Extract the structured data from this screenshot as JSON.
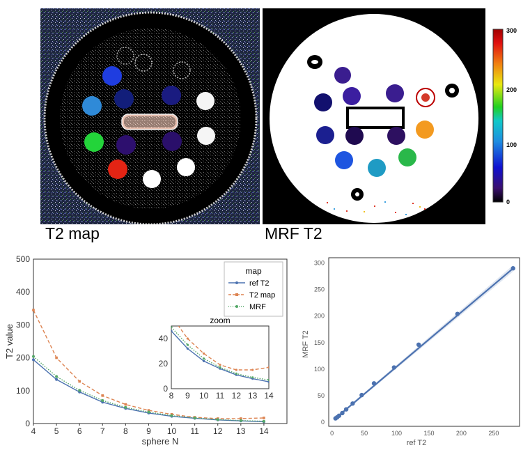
{
  "figure": {
    "left_map_label": "T2 map",
    "right_map_label": "MRF T2",
    "colorbar": {
      "min": 0,
      "max": 300,
      "ticks": [
        "300",
        "200",
        "100",
        "0"
      ],
      "tick_values": [
        300,
        200,
        100,
        0
      ]
    }
  },
  "chart_data": [
    {
      "type": "line",
      "title": "",
      "xlabel": "sphere N",
      "ylabel": "T2 value",
      "xlim": [
        4,
        15
      ],
      "ylim": [
        0,
        500
      ],
      "x": [
        4,
        5,
        6,
        7,
        8,
        9,
        10,
        11,
        12,
        13,
        14
      ],
      "xticks": [
        "4",
        "5",
        "6",
        "7",
        "8",
        "9",
        "10",
        "11",
        "12",
        "13",
        "14"
      ],
      "yticks": [
        "0",
        "100",
        "200",
        "300",
        "400",
        "500"
      ],
      "ytick_values": [
        0,
        100,
        200,
        300,
        400,
        500
      ],
      "legend": {
        "title": "map",
        "placement": "top-right",
        "entries": [
          "ref T2",
          "T2 map",
          "MRF"
        ]
      },
      "series": [
        {
          "name": "ref T2",
          "color": "#4c72b0",
          "values": [
            194,
            134,
            96,
            65,
            46,
            32,
            22,
            16,
            11,
            8,
            5.5
          ]
        },
        {
          "name": "T2 map",
          "color": "#dd8452",
          "values": [
            345,
            200,
            128,
            85,
            58,
            40,
            28,
            19,
            15,
            15,
            17
          ]
        },
        {
          "name": "MRF",
          "color": "#55a868",
          "values": [
            204,
            143,
            101,
            70,
            49,
            35,
            24,
            17,
            12,
            9,
            7
          ]
        }
      ],
      "inset": {
        "title": "zoom",
        "xlim": [
          8,
          14
        ],
        "ylim": [
          0,
          50
        ],
        "xticks": [
          "8",
          "9",
          "10",
          "11",
          "12",
          "13",
          "14"
        ],
        "yticks": [
          "0",
          "20",
          "40"
        ],
        "ytick_values": [
          0,
          20,
          40
        ]
      }
    },
    {
      "type": "scatter",
      "title": "",
      "xlabel": "ref T2",
      "ylabel": "MRF T2",
      "xlim": [
        -5,
        290
      ],
      "ylim": [
        -8,
        310
      ],
      "xticks": [
        "0",
        "50",
        "100",
        "150",
        "200",
        "250"
      ],
      "xtick_values": [
        0,
        50,
        100,
        150,
        200,
        250
      ],
      "yticks": [
        "0",
        "50",
        "100",
        "150",
        "200",
        "250",
        "300"
      ],
      "ytick_values": [
        0,
        50,
        100,
        150,
        200,
        250,
        300
      ],
      "color": "#4c72b0",
      "x": [
        5.5,
        8,
        11,
        16,
        22,
        32,
        46,
        65,
        96,
        134,
        194,
        280
      ],
      "y": [
        7,
        9,
        12,
        17,
        24,
        35,
        51,
        73,
        103,
        146,
        204,
        290
      ],
      "fit": {
        "slope": 1.03,
        "intercept": 1.5,
        "x_range": [
          5,
          280
        ]
      }
    }
  ]
}
